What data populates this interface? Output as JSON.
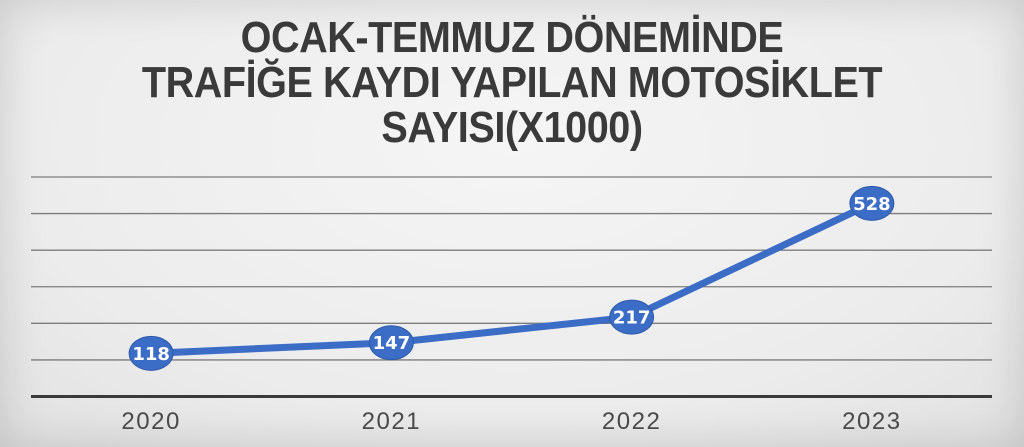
{
  "chart_data": {
    "type": "line",
    "title": "OCAK-TEMMUZ DÖNEMİNDE TRAFİĞE KAYDI YAPILAN MOTOSİKLET SAYISI(X1000)",
    "title_lines": [
      "OCAK-TEMMUZ DÖNEMİNDE",
      "TRAFİĞE KAYDI YAPILAN MOTOSİKLET",
      "SAYISI(X1000)"
    ],
    "categories": [
      "2020",
      "2021",
      "2022",
      "2023"
    ],
    "series": [
      {
        "name": "",
        "values": [
          118,
          147,
          217,
          528
        ]
      }
    ],
    "data_labels": [
      "118",
      "147",
      "217",
      "528"
    ],
    "xlabel": "",
    "ylabel": "",
    "ylim": [
      0,
      600
    ],
    "grid_step": 100,
    "grid": true,
    "legend": false,
    "colors": {
      "line": "#3b6cc6",
      "marker_fill": "#3b6cc6",
      "marker_stroke": "#2e59a8",
      "marker_label": "#ffffff",
      "gridline": "#7c7c7c",
      "axis": "#3a3a3a",
      "tick_label": "#4a4a4a",
      "title": "#3a3a3a"
    }
  }
}
